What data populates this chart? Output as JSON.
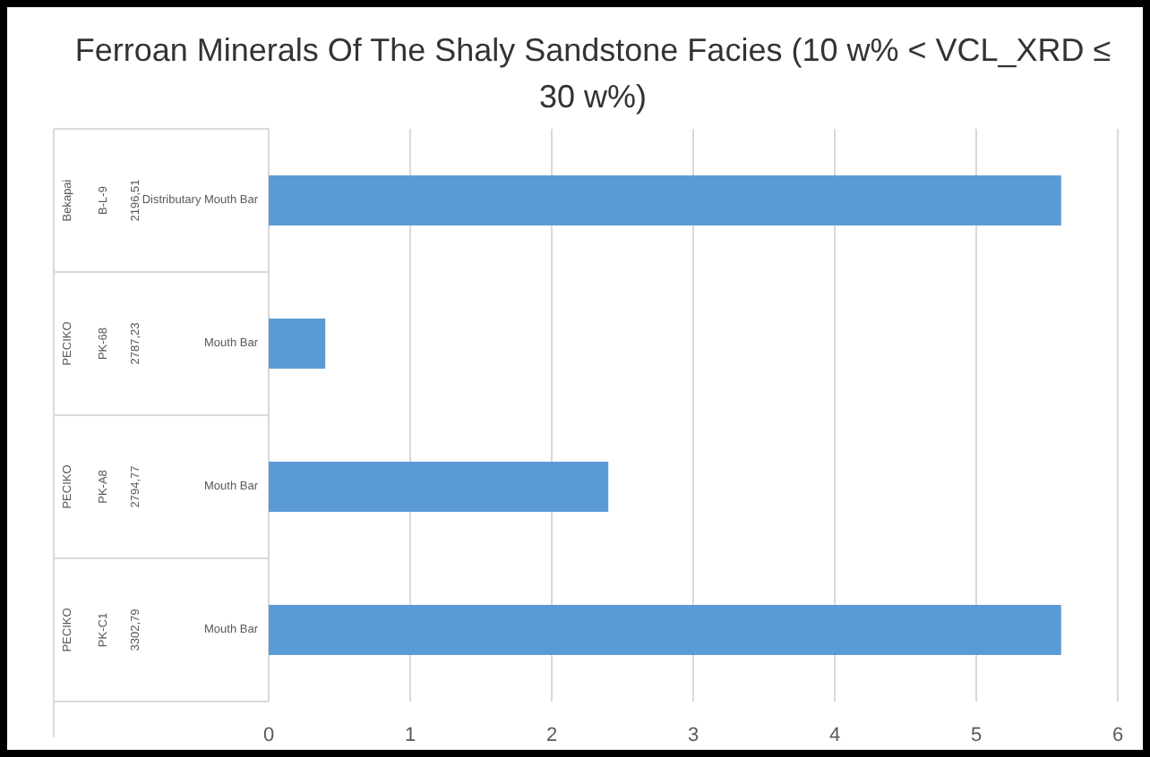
{
  "chart_data": {
    "type": "bar",
    "orientation": "horizontal",
    "title": "Ferroan Minerals Of The Shaly Sandstone Facies (10 w% < VCL_XRD ≤ 30 w%)",
    "categories": [
      "Bekapai\nB-L-9\n2196,51\nDistributary Mouth Bar",
      "PECIKO\nPK-68\n2787,23\nMouth Bar",
      "PECIKO\nPK-A8\n2794,77\nMouth Bar",
      "PECIKO\nPK-C1\n3302,79\nMouth Bar"
    ],
    "values": [
      5.6,
      0.4,
      2.4,
      5.6
    ],
    "color": "#5b9bd5",
    "xlim": [
      0,
      6
    ],
    "xticks": [
      0,
      1,
      2,
      3,
      4,
      5,
      6
    ],
    "grid": "x"
  }
}
